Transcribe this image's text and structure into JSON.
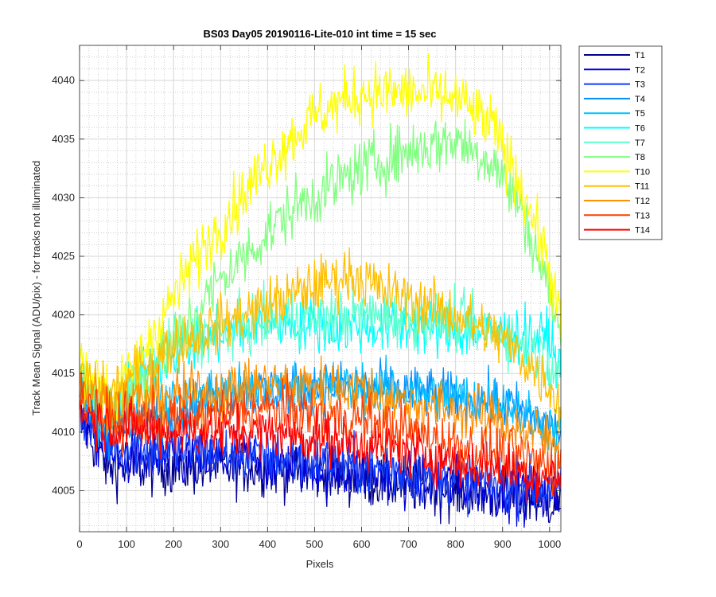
{
  "chart_data": {
    "type": "line",
    "title": "BS03 Day05 20190116-Lite-010 int time = 15 sec",
    "xlabel": "Pixels",
    "ylabel": "Track Mean Signal (ADU/pix) - for tracks not illuminated",
    "xlim": [
      0,
      1024
    ],
    "ylim": [
      4001.5,
      4043
    ],
    "xticks": [
      0,
      100,
      200,
      300,
      400,
      500,
      600,
      700,
      800,
      900,
      1000
    ],
    "yticks": [
      4005,
      4010,
      4015,
      4020,
      4025,
      4030,
      4035,
      4040
    ],
    "grid": true,
    "minor_grid": true,
    "legend_position": "outside-right",
    "series": [
      {
        "name": "T1",
        "color": "#00008f",
        "noise": 1.2,
        "points": [
          [
            0,
            4011
          ],
          [
            60,
            4007
          ],
          [
            200,
            4007
          ],
          [
            400,
            4007
          ],
          [
            600,
            4006
          ],
          [
            800,
            4005
          ],
          [
            1024,
            4004
          ]
        ]
      },
      {
        "name": "T2",
        "color": "#0000d9",
        "noise": 1.2,
        "points": [
          [
            0,
            4012
          ],
          [
            60,
            4008
          ],
          [
            200,
            4007.5
          ],
          [
            400,
            4007.5
          ],
          [
            600,
            4006.5
          ],
          [
            800,
            4005.5
          ],
          [
            1024,
            4004.5
          ]
        ]
      },
      {
        "name": "T3",
        "color": "#0f3fff",
        "noise": 1.2,
        "points": [
          [
            0,
            4012
          ],
          [
            60,
            4009
          ],
          [
            200,
            4008.5
          ],
          [
            400,
            4008
          ],
          [
            600,
            4007
          ],
          [
            800,
            4006
          ],
          [
            1024,
            4005
          ]
        ]
      },
      {
        "name": "T4",
        "color": "#0090ff",
        "noise": 1.1,
        "points": [
          [
            0,
            4013
          ],
          [
            60,
            4010
          ],
          [
            300,
            4013
          ],
          [
            500,
            4014
          ],
          [
            700,
            4013.5
          ],
          [
            900,
            4012.5
          ],
          [
            1024,
            4010
          ]
        ]
      },
      {
        "name": "T5",
        "color": "#00bfff",
        "noise": 1.1,
        "points": [
          [
            0,
            4013
          ],
          [
            60,
            4011
          ],
          [
            300,
            4013.5
          ],
          [
            500,
            4014
          ],
          [
            700,
            4013.5
          ],
          [
            900,
            4012.5
          ],
          [
            1024,
            4010
          ]
        ]
      },
      {
        "name": "T6",
        "color": "#00ffff",
        "noise": 1.2,
        "points": [
          [
            0,
            4014
          ],
          [
            60,
            4012
          ],
          [
            200,
            4017
          ],
          [
            400,
            4019.5
          ],
          [
            550,
            4019
          ],
          [
            700,
            4019
          ],
          [
            850,
            4018.5
          ],
          [
            1000,
            4018
          ],
          [
            1024,
            4015
          ]
        ]
      },
      {
        "name": "T7",
        "color": "#5fffcf",
        "noise": 1.2,
        "points": [
          [
            0,
            4014
          ],
          [
            60,
            4012
          ],
          [
            200,
            4017.5
          ],
          [
            400,
            4019.5
          ],
          [
            600,
            4020
          ],
          [
            800,
            4019.5
          ],
          [
            900,
            4018.5
          ],
          [
            1000,
            4016
          ],
          [
            1024,
            4015
          ]
        ]
      },
      {
        "name": "T8",
        "color": "#80ff80",
        "noise": 1.3,
        "points": [
          [
            0,
            4014
          ],
          [
            80,
            4012.5
          ],
          [
            150,
            4015
          ],
          [
            300,
            4023
          ],
          [
            450,
            4029
          ],
          [
            600,
            4032.5
          ],
          [
            700,
            4034
          ],
          [
            800,
            4035
          ],
          [
            880,
            4033
          ],
          [
            940,
            4029
          ],
          [
            1000,
            4022
          ],
          [
            1024,
            4018
          ]
        ]
      },
      {
        "name": "T10",
        "color": "#ffff00",
        "noise": 1.3,
        "points": [
          [
            0,
            4016
          ],
          [
            80,
            4013
          ],
          [
            150,
            4018
          ],
          [
            250,
            4025
          ],
          [
            400,
            4033
          ],
          [
            500,
            4037
          ],
          [
            600,
            4039
          ],
          [
            700,
            4039
          ],
          [
            800,
            4038.5
          ],
          [
            880,
            4036
          ],
          [
            950,
            4030
          ],
          [
            1000,
            4024
          ],
          [
            1024,
            4019
          ]
        ]
      },
      {
        "name": "T11",
        "color": "#ffbf00",
        "noise": 1.2,
        "points": [
          [
            0,
            4015
          ],
          [
            60,
            4013
          ],
          [
            200,
            4017.5
          ],
          [
            350,
            4020
          ],
          [
            500,
            4022.5
          ],
          [
            580,
            4023.5
          ],
          [
            650,
            4022
          ],
          [
            800,
            4020
          ],
          [
            900,
            4018
          ],
          [
            1000,
            4014
          ],
          [
            1024,
            4012
          ]
        ]
      },
      {
        "name": "T12",
        "color": "#ff9000",
        "noise": 1.2,
        "points": [
          [
            0,
            4014
          ],
          [
            60,
            4012.5
          ],
          [
            200,
            4013
          ],
          [
            400,
            4014
          ],
          [
            550,
            4014
          ],
          [
            700,
            4012.5
          ],
          [
            850,
            4011.5
          ],
          [
            1024,
            4009
          ]
        ]
      },
      {
        "name": "T13",
        "color": "#ff3f00",
        "noise": 1.2,
        "points": [
          [
            0,
            4013
          ],
          [
            60,
            4011
          ],
          [
            200,
            4011
          ],
          [
            400,
            4012
          ],
          [
            600,
            4011
          ],
          [
            800,
            4009
          ],
          [
            1024,
            4007
          ]
        ]
      },
      {
        "name": "T14",
        "color": "#ff0000",
        "noise": 1.1,
        "points": [
          [
            0,
            4012
          ],
          [
            60,
            4010.5
          ],
          [
            200,
            4010
          ],
          [
            400,
            4010
          ],
          [
            600,
            4009
          ],
          [
            800,
            4007.5
          ],
          [
            1024,
            4006
          ]
        ]
      }
    ]
  }
}
